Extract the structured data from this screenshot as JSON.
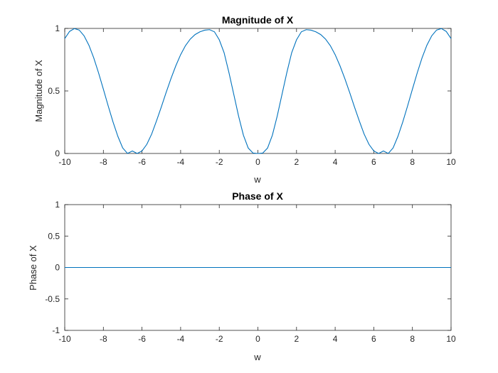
{
  "chart_data": [
    {
      "type": "line",
      "title": "Magnitude of X",
      "xlabel": "w",
      "ylabel": "Magnitude of X",
      "xlim": [
        -10,
        10
      ],
      "ylim": [
        0,
        1
      ],
      "xticks": [
        "-10",
        "-8",
        "-6",
        "-4",
        "-2",
        "0",
        "2",
        "4",
        "6",
        "8",
        "10"
      ],
      "yticks": [
        "0",
        "0.5",
        "1"
      ],
      "grid": false,
      "color": "#0072BD",
      "series": [
        {
          "x": [
            -10.0,
            -9.75,
            -9.5,
            -9.25,
            -9.0,
            -8.75,
            -8.5,
            -8.25,
            -8.0,
            -7.75,
            -7.5,
            -7.25,
            -7.0,
            -6.75,
            -6.5,
            -6.25,
            -6.0,
            -5.75,
            -5.5,
            -5.25,
            -5.0,
            -4.75,
            -4.5,
            -4.25,
            -4.0,
            -3.75,
            -3.5,
            -3.25,
            -3.0,
            -2.75,
            -2.5,
            -2.25,
            -2.0,
            -1.75,
            -1.5,
            -1.25,
            -1.0,
            -0.75,
            -0.5,
            -0.25,
            0.0,
            0.25,
            0.5,
            0.75,
            1.0,
            1.25,
            1.5,
            1.75,
            2.0,
            2.25,
            2.5,
            2.75,
            3.0,
            3.25,
            3.5,
            3.75,
            4.0,
            4.25,
            4.5,
            4.75,
            5.0,
            5.25,
            5.5,
            5.75,
            6.0,
            6.25,
            6.5,
            6.75,
            7.0,
            7.25,
            7.5,
            7.75,
            8.0,
            8.25,
            8.5,
            8.75,
            9.0,
            9.25,
            9.5,
            9.75,
            10.0
          ],
          "y": [
            0.919,
            0.976,
            0.999,
            0.987,
            0.941,
            0.866,
            0.765,
            0.645,
            0.514,
            0.38,
            0.252,
            0.137,
            0.044,
            -0.0,
            0.02,
            0.0,
            0.02,
            0.073,
            0.155,
            0.26,
            0.372,
            0.488,
            0.599,
            0.701,
            0.79,
            0.862,
            0.915,
            0.951,
            0.973,
            0.986,
            0.99,
            0.973,
            0.909,
            0.806,
            0.648,
            0.474,
            0.299,
            0.146,
            0.043,
            0.003,
            0.0,
            0.003,
            0.043,
            0.146,
            0.299,
            0.474,
            0.648,
            0.806,
            0.909,
            0.973,
            0.99,
            0.986,
            0.973,
            0.951,
            0.915,
            0.862,
            0.79,
            0.701,
            0.599,
            0.488,
            0.372,
            0.26,
            0.155,
            0.073,
            0.02,
            0.0,
            0.02,
            -0.0,
            0.044,
            0.137,
            0.252,
            0.38,
            0.514,
            0.645,
            0.765,
            0.866,
            0.941,
            0.987,
            0.999,
            0.976,
            0.919
          ]
        }
      ]
    },
    {
      "type": "line",
      "title": "Phase of X",
      "xlabel": "w",
      "ylabel": "Phase of X",
      "xlim": [
        -10,
        10
      ],
      "ylim": [
        -1,
        1
      ],
      "xticks": [
        "-10",
        "-8",
        "-6",
        "-4",
        "-2",
        "0",
        "2",
        "4",
        "6",
        "8",
        "10"
      ],
      "yticks": [
        "-1",
        "-0.5",
        "0",
        "0.5",
        "1"
      ],
      "grid": false,
      "color": "#0072BD",
      "series": [
        {
          "x": [
            -10,
            10
          ],
          "y": [
            0,
            0
          ]
        }
      ]
    }
  ]
}
